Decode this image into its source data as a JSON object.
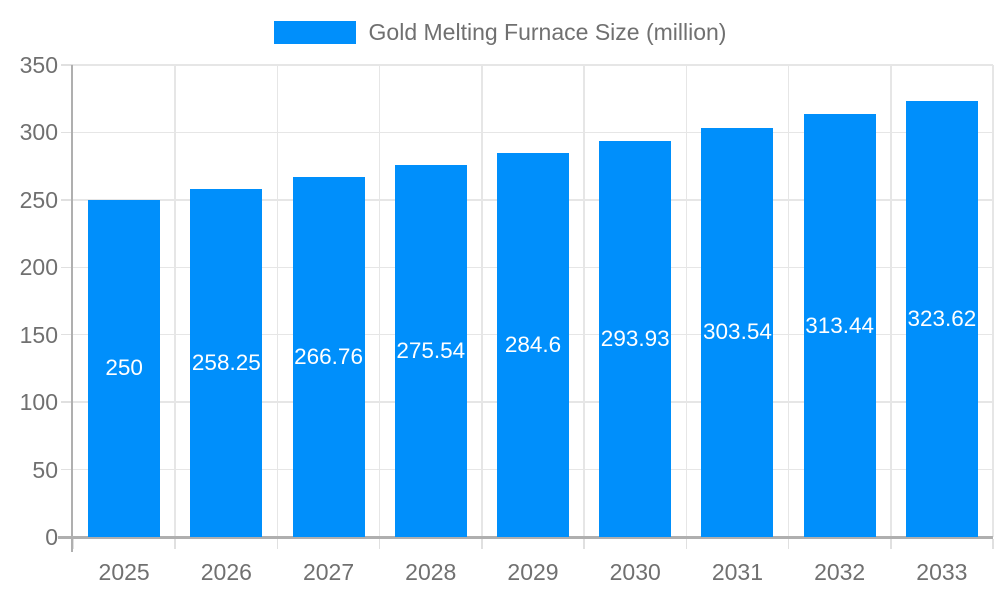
{
  "legend": {
    "label": "Gold Melting Furnace Size (million)"
  },
  "colors": {
    "bar": "#008FFB",
    "grid": "#E6E6E6",
    "axis": "#AFAFAF",
    "tick": "#E0E0E0",
    "tick_text": "#707070",
    "bar_label_text": "#FFFFFF"
  },
  "chart_data": {
    "type": "bar",
    "title": "Gold Melting Furnace Size (million)",
    "categories": [
      "2025",
      "2026",
      "2027",
      "2028",
      "2029",
      "2030",
      "2031",
      "2032",
      "2033"
    ],
    "series": [
      {
        "name": "Gold Melting Furnace Size (million)",
        "values": [
          250,
          258.25,
          266.76,
          275.54,
          284.6,
          293.93,
          303.54,
          313.44,
          323.62
        ]
      }
    ],
    "data_labels": [
      "250",
      "258.25",
      "266.76",
      "275.54",
      "284.6",
      "293.93",
      "303.54",
      "313.44",
      "323.62"
    ],
    "xlabel": "",
    "ylabel": "",
    "ylim": [
      0,
      350
    ],
    "y_ticks": [
      0,
      50,
      100,
      150,
      200,
      250,
      300,
      350
    ],
    "grid": true,
    "legend_position": "top"
  }
}
